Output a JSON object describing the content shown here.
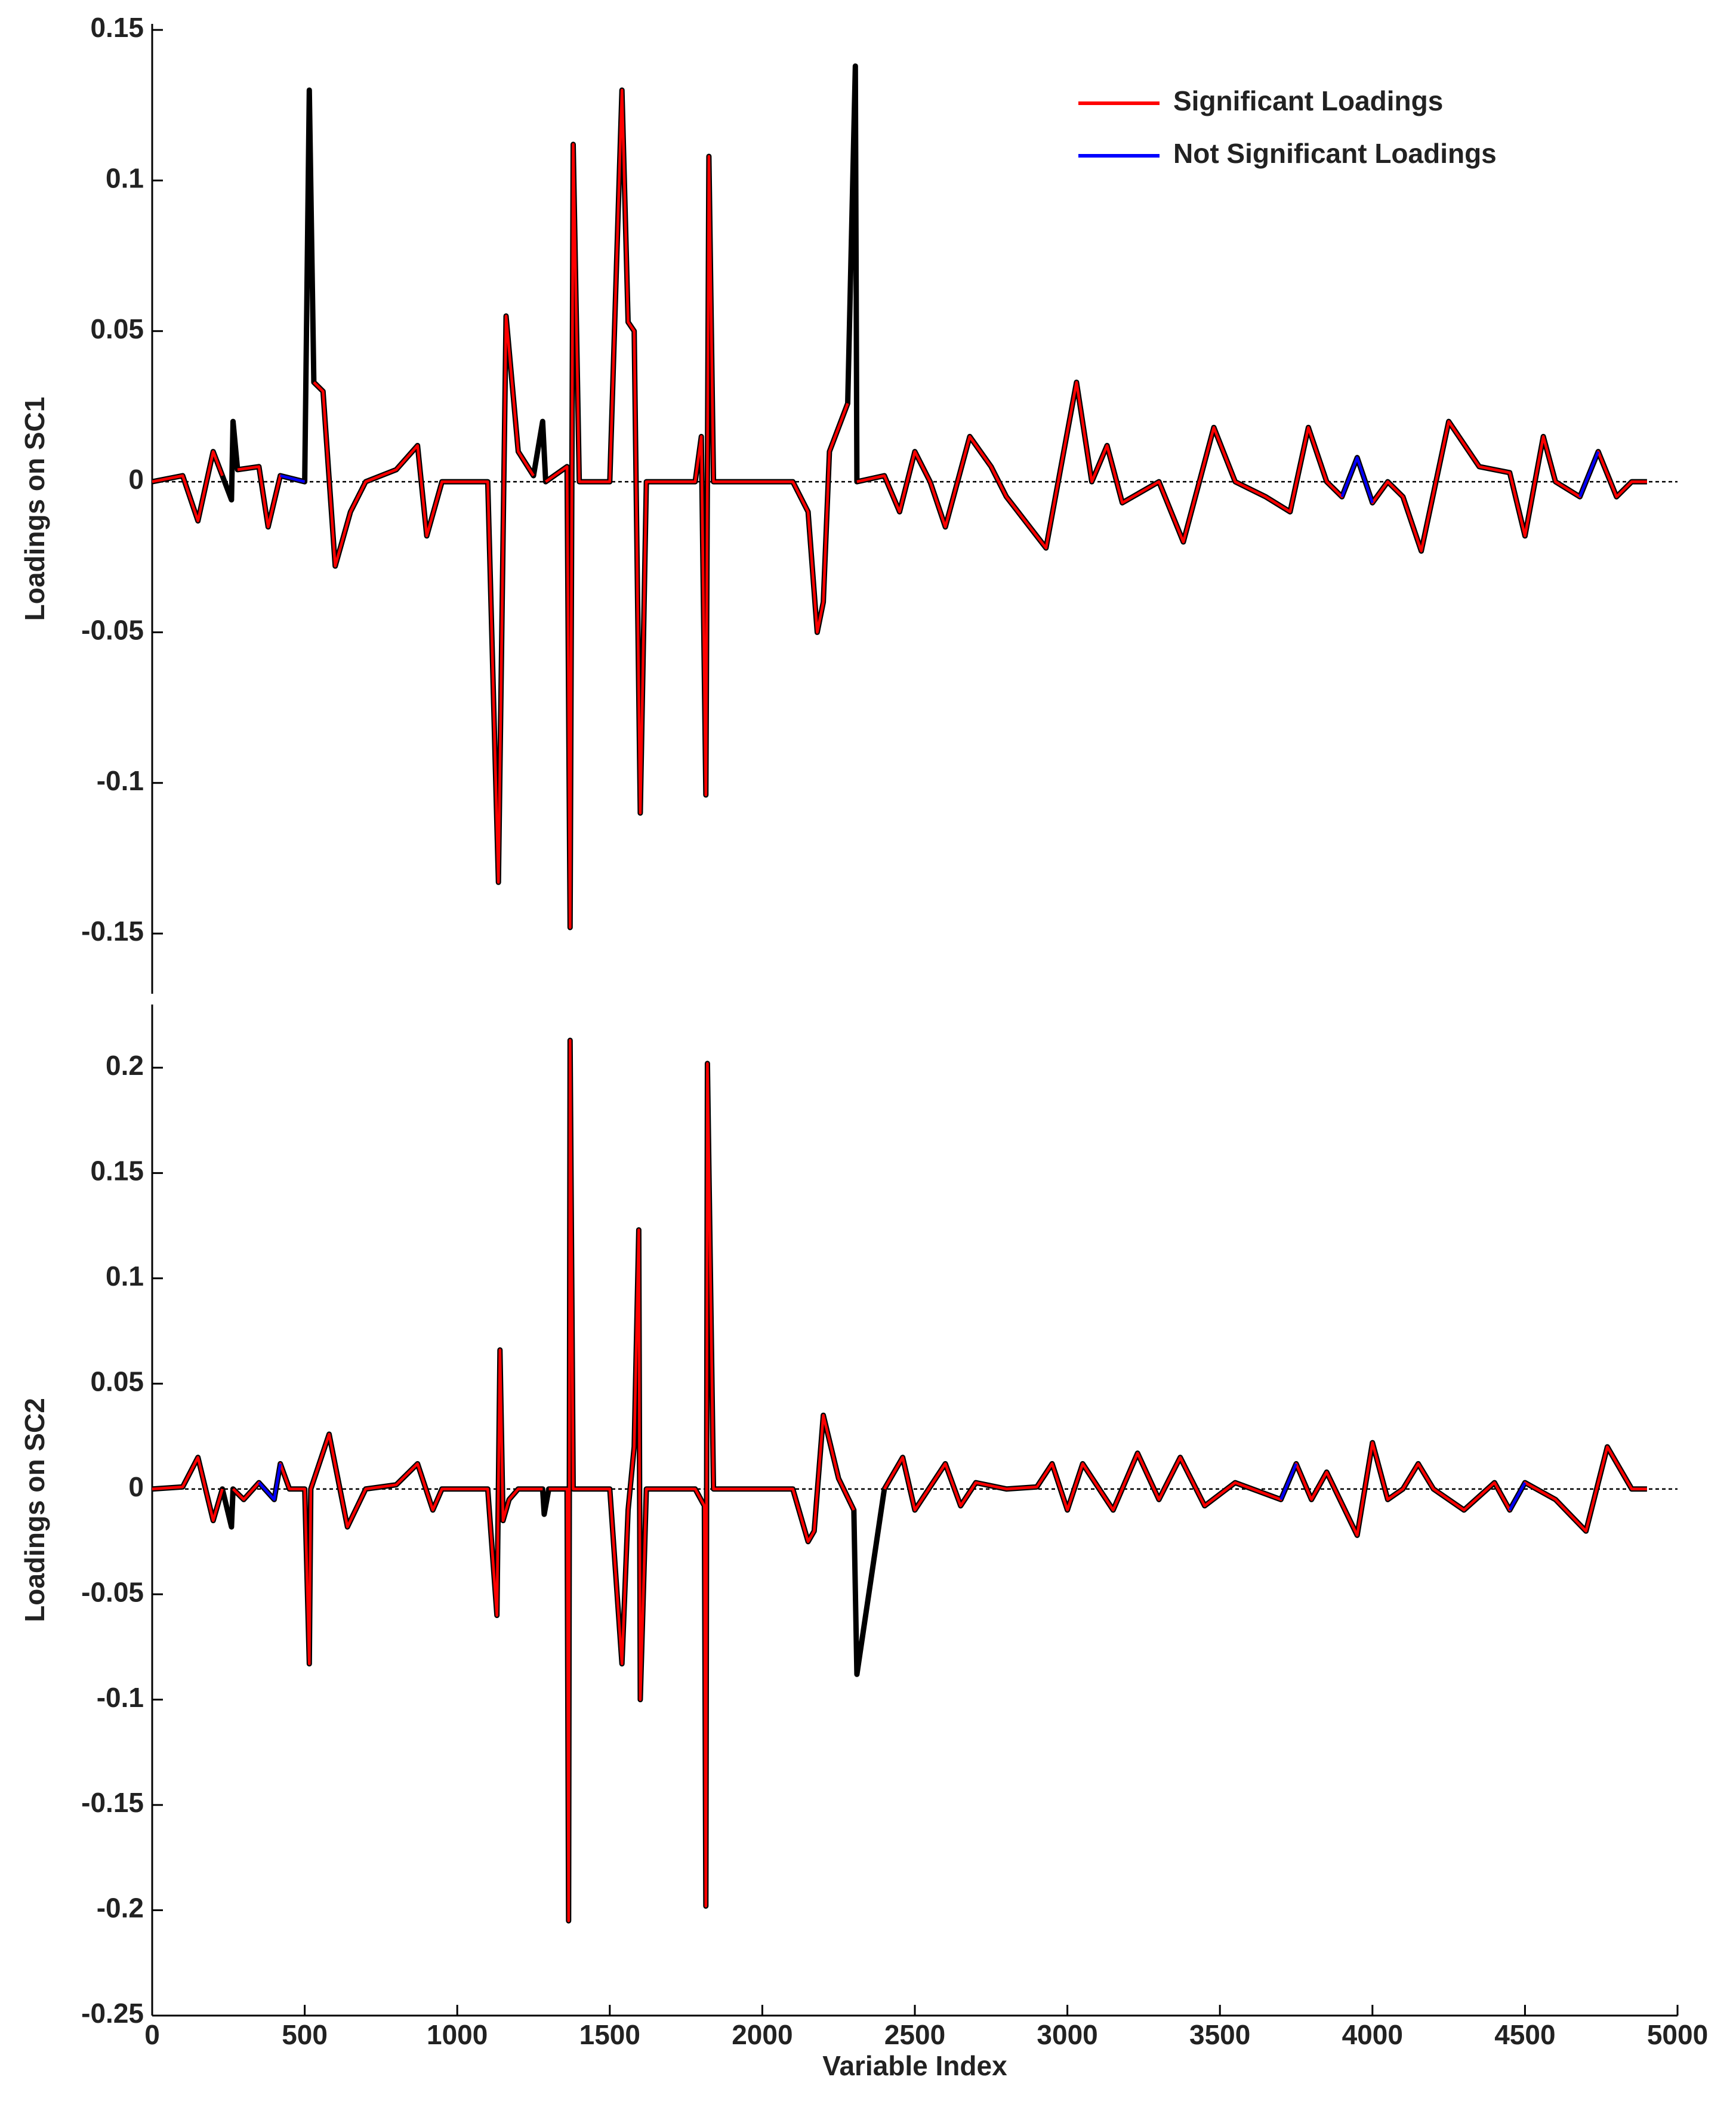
{
  "chart_data": [
    {
      "type": "line",
      "ylabel": "Loadings on SC1",
      "legend": "upper right",
      "grid": false,
      "xlim": [
        0,
        5000
      ],
      "ylim": [
        -0.17,
        0.152
      ],
      "yticks": [
        -0.15,
        -0.1,
        -0.05,
        0,
        0.05,
        0.1,
        0.15
      ],
      "x": [
        0,
        100,
        150,
        200,
        230,
        260,
        265,
        280,
        350,
        380,
        420,
        500,
        515,
        530,
        560,
        600,
        650,
        700,
        800,
        870,
        900,
        950,
        1100,
        1135,
        1160,
        1200,
        1250,
        1280,
        1290,
        1360,
        1370,
        1380,
        1400,
        1500,
        1540,
        1560,
        1580,
        1600,
        1620,
        1780,
        1800,
        1815,
        1825,
        1840,
        2100,
        2150,
        2180,
        2200,
        2220,
        2280,
        2305,
        2310,
        2400,
        2450,
        2500,
        2550,
        2600,
        2680,
        2750,
        2800,
        2930,
        3030,
        3080,
        3130,
        3180,
        3300,
        3380,
        3480,
        3550,
        3650,
        3730,
        3790,
        3850,
        3900,
        3950,
        4000,
        4050,
        4100,
        4160,
        4250,
        4350,
        4450,
        4500,
        4560,
        4600,
        4680,
        4740,
        4800,
        4850,
        4900
      ],
      "series": [
        {
          "color": "#000000",
          "values": [
            0,
            0.002,
            -0.013,
            0.01,
            0.002,
            -0.006,
            0.02,
            0.004,
            0.005,
            -0.015,
            0.002,
            0,
            0.13,
            0.033,
            0.03,
            -0.028,
            -0.01,
            0,
            0.004,
            0.012,
            -0.018,
            0,
            0,
            -0.133,
            0.055,
            0.01,
            0.002,
            0.02,
            0,
            0.005,
            -0.148,
            0.112,
            0,
            0,
            0.13,
            0.053,
            0.05,
            -0.11,
            0,
            0,
            0.015,
            -0.104,
            0.108,
            0,
            0,
            -0.01,
            -0.05,
            -0.04,
            0.01,
            0.026,
            0.138,
            0,
            0.002,
            -0.01,
            0.01,
            0,
            -0.015,
            0.015,
            0.005,
            -0.005,
            -0.022,
            0.033,
            0,
            0.012,
            -0.007,
            0,
            -0.02,
            0.018,
            0,
            -0.005,
            -0.01,
            0.018,
            0,
            -0.005,
            0.008,
            -0.007,
            0,
            -0.005,
            -0.023,
            0.02,
            0.005,
            0.003,
            -0.018,
            0.015,
            0,
            -0.005,
            0.01,
            -0.005,
            0,
            0
          ]
        },
        {
          "name": "Significant Loadings",
          "color": "#ff0000",
          "values": [
            0,
            0.002,
            -0.013,
            0.01,
            0.002,
            null,
            null,
            0.004,
            0.005,
            -0.015,
            0.002,
            0,
            null,
            0.033,
            0.03,
            -0.028,
            -0.01,
            0,
            0.004,
            0.012,
            -0.018,
            0,
            0,
            -0.133,
            0.055,
            0.01,
            0.002,
            null,
            0,
            0.005,
            -0.148,
            0.112,
            0,
            0,
            0.13,
            0.053,
            0.05,
            -0.11,
            0,
            0,
            0.015,
            -0.104,
            0.108,
            0,
            0,
            -0.01,
            -0.05,
            -0.04,
            0.01,
            0.026,
            null,
            0,
            0.002,
            -0.01,
            0.01,
            0,
            -0.015,
            0.015,
            0.005,
            -0.005,
            -0.022,
            0.033,
            0,
            0.012,
            -0.007,
            0,
            -0.02,
            0.018,
            0,
            -0.005,
            -0.01,
            0.018,
            0,
            -0.005,
            0.008,
            -0.007,
            0,
            -0.005,
            -0.023,
            0.02,
            0.005,
            0.003,
            -0.018,
            0.015,
            0,
            -0.005,
            0.01,
            -0.005,
            0,
            0
          ]
        },
        {
          "name": "Not Significant Loadings",
          "color": "#0000ff",
          "values": [
            null,
            null,
            null,
            null,
            null,
            null,
            null,
            null,
            null,
            null,
            0.002,
            0,
            null,
            null,
            null,
            null,
            null,
            null,
            null,
            null,
            null,
            null,
            null,
            null,
            null,
            null,
            null,
            null,
            null,
            null,
            null,
            null,
            null,
            null,
            null,
            null,
            null,
            null,
            null,
            null,
            null,
            null,
            null,
            null,
            null,
            null,
            null,
            null,
            null,
            null,
            null,
            null,
            null,
            null,
            null,
            null,
            null,
            null,
            null,
            null,
            null,
            null,
            null,
            null,
            null,
            null,
            null,
            null,
            null,
            null,
            null,
            null,
            null,
            -0.005,
            0.008,
            -0.007,
            null,
            null,
            null,
            null,
            null,
            null,
            null,
            null,
            null,
            -0.005,
            0.01,
            null,
            null,
            null
          ]
        }
      ]
    },
    {
      "type": "line",
      "ylabel": "Loadings on SC2",
      "xlabel": "Variable Index",
      "grid": false,
      "xlim": [
        0,
        5000
      ],
      "ylim": [
        -0.25,
        0.23
      ],
      "xticks": [
        0,
        500,
        1000,
        1500,
        2000,
        2500,
        3000,
        3500,
        4000,
        4500,
        5000
      ],
      "yticks": [
        -0.25,
        -0.2,
        -0.15,
        -0.1,
        -0.05,
        0,
        0.05,
        0.1,
        0.15,
        0.2
      ],
      "x": [
        0,
        100,
        150,
        200,
        230,
        260,
        265,
        300,
        350,
        400,
        420,
        450,
        500,
        515,
        520,
        580,
        640,
        700,
        800,
        870,
        920,
        950,
        1100,
        1130,
        1140,
        1150,
        1170,
        1200,
        1280,
        1285,
        1300,
        1360,
        1365,
        1370,
        1380,
        1400,
        1500,
        1540,
        1560,
        1580,
        1595,
        1600,
        1620,
        1780,
        1810,
        1815,
        1820,
        1840,
        2100,
        2150,
        2170,
        2200,
        2250,
        2300,
        2310,
        2400,
        2460,
        2500,
        2600,
        2650,
        2700,
        2800,
        2900,
        2950,
        3000,
        3050,
        3150,
        3230,
        3300,
        3370,
        3450,
        3550,
        3700,
        3750,
        3800,
        3850,
        3950,
        4000,
        4050,
        4100,
        4150,
        4200,
        4300,
        4400,
        4450,
        4500,
        4600,
        4700,
        4770,
        4850,
        4900
      ],
      "series": [
        {
          "color": "#000000",
          "values": [
            0,
            0.001,
            0.015,
            -0.015,
            0,
            -0.018,
            0,
            -0.005,
            0.003,
            -0.005,
            0.012,
            0,
            0,
            -0.083,
            0,
            0.026,
            -0.018,
            0,
            0.002,
            0.012,
            -0.01,
            0,
            0,
            -0.06,
            0.066,
            -0.015,
            -0.005,
            0,
            0,
            -0.012,
            0,
            0,
            -0.205,
            0.213,
            0,
            0,
            0,
            -0.083,
            -0.01,
            0.02,
            0.123,
            -0.1,
            0,
            0,
            -0.008,
            -0.198,
            0.202,
            0,
            0,
            -0.025,
            -0.02,
            0.035,
            0.005,
            -0.01,
            -0.088,
            0,
            0.015,
            -0.01,
            0.012,
            -0.008,
            0.003,
            0,
            0.001,
            0.012,
            -0.01,
            0.012,
            -0.01,
            0.017,
            -0.005,
            0.015,
            -0.008,
            0.003,
            -0.005,
            0.012,
            -0.005,
            0.008,
            -0.022,
            0.022,
            -0.005,
            0,
            0.012,
            0,
            -0.01,
            0.003,
            -0.01,
            0.003,
            -0.005,
            -0.02,
            0.02,
            0,
            0
          ]
        },
        {
          "color": "#ff0000",
          "values": [
            0,
            0.001,
            0.015,
            -0.015,
            0,
            null,
            0,
            -0.005,
            0.003,
            -0.005,
            0.012,
            0,
            0,
            -0.083,
            0,
            0.026,
            -0.018,
            0,
            0.002,
            0.012,
            -0.01,
            0,
            0,
            -0.06,
            0.066,
            -0.015,
            -0.005,
            0,
            0,
            null,
            0,
            0,
            -0.205,
            0.213,
            0,
            0,
            0,
            -0.083,
            -0.01,
            0.02,
            0.123,
            -0.1,
            0,
            0,
            -0.008,
            -0.198,
            0.202,
            0,
            0,
            -0.025,
            -0.02,
            0.035,
            0.005,
            -0.01,
            null,
            0,
            0.015,
            -0.01,
            0.012,
            -0.008,
            0.003,
            0,
            0.001,
            0.012,
            -0.01,
            0.012,
            -0.01,
            0.017,
            -0.005,
            0.015,
            -0.008,
            0.003,
            -0.005,
            0.012,
            -0.005,
            0.008,
            -0.022,
            0.022,
            -0.005,
            0,
            0.012,
            0,
            -0.01,
            0.003,
            -0.01,
            0.003,
            -0.005,
            -0.02,
            0.02,
            0,
            0
          ]
        },
        {
          "color": "#0000ff",
          "values": [
            null,
            null,
            null,
            null,
            null,
            null,
            null,
            null,
            0.003,
            -0.005,
            0.012,
            null,
            null,
            null,
            null,
            null,
            null,
            null,
            null,
            null,
            null,
            null,
            null,
            null,
            null,
            null,
            null,
            null,
            null,
            null,
            null,
            null,
            null,
            null,
            null,
            null,
            null,
            null,
            null,
            null,
            null,
            null,
            null,
            null,
            null,
            null,
            null,
            null,
            null,
            null,
            null,
            null,
            null,
            null,
            null,
            null,
            null,
            null,
            null,
            null,
            null,
            null,
            null,
            null,
            null,
            null,
            null,
            null,
            null,
            null,
            null,
            null,
            -0.005,
            0.012,
            null,
            null,
            null,
            null,
            null,
            null,
            null,
            null,
            null,
            null,
            -0.01,
            0.003,
            null,
            null,
            null,
            null,
            null
          ]
        }
      ]
    }
  ]
}
